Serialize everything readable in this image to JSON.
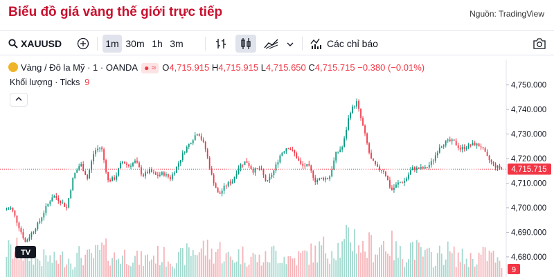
{
  "header": {
    "title": "Biểu đồ giá vàng thế giới trực tiếp",
    "source": "Nguồn: TradingView"
  },
  "toolbar": {
    "symbol": "XAUUSD",
    "intervals": [
      "1m",
      "30m",
      "1h",
      "3m"
    ],
    "active_interval": "1m",
    "indicators_label": "Các chỉ báo",
    "icons": [
      "search-icon",
      "add-symbol-icon",
      "bars-icon",
      "candles-icon",
      "area-icon",
      "chevron-down-icon",
      "indicators-icon",
      "camera-icon"
    ]
  },
  "legend": {
    "name": "Vàng / Đô la Mỹ · 1 · OANDA",
    "o_label": "O",
    "o": "4,715.915",
    "h_label": "H",
    "h": "4,715.915",
    "l_label": "L",
    "l": "4,715.650",
    "c_label": "C",
    "c": "4,715.715",
    "change": "−0.380 (−0.01%)",
    "volume_label": "Khối lượng · Ticks",
    "volume_value": "9"
  },
  "colors": {
    "up": "#089981",
    "down": "#f23645",
    "title": "#c8102e",
    "last_price": "#f23645",
    "volume_up": "#a3d9cf",
    "volume_down": "#f7b2b7"
  },
  "chart_data": {
    "type": "line",
    "title": "",
    "y_ticks": [
      4680,
      4690,
      4700,
      4710,
      4720,
      4730,
      4740,
      4750
    ],
    "y_tick_labels": [
      "4,680.000",
      "4,690.000",
      "4,700.000",
      "4,710.000",
      "4,720.000",
      "4,730.000",
      "4,740.000",
      "4,750.000"
    ],
    "ylim": [
      4678,
      4753
    ],
    "grid": false,
    "last_price": 4715.715,
    "last_price_label": "4,715.715",
    "last_volume": 9,
    "x": [
      0,
      10,
      20,
      30,
      40,
      50,
      60,
      70,
      80,
      90,
      100,
      110,
      120,
      130,
      140,
      150,
      160,
      170,
      180,
      190,
      200,
      210,
      220,
      230,
      240,
      250,
      260,
      270,
      280,
      290,
      300,
      310,
      320,
      330,
      340,
      350,
      360,
      370,
      380,
      390,
      400,
      410,
      420,
      430,
      440,
      450,
      460,
      470,
      480,
      490,
      500,
      510,
      520,
      530,
      540,
      550,
      560,
      570,
      580,
      590,
      600,
      610,
      620,
      630,
      640,
      650,
      660,
      670,
      680,
      690,
      700,
      710,
      720
    ],
    "series": [
      {
        "values": [
          4699,
          4700,
          4693,
          4686,
          4690,
          4694,
          4700,
          4705,
          4703,
          4700,
          4713,
          4718,
          4712,
          4723,
          4725,
          4711,
          4712,
          4719,
          4717,
          4719,
          4713,
          4715,
          4713,
          4714,
          4712,
          4717,
          4723,
          4727,
          4731,
          4725,
          4713,
          4705,
          4709,
          4711,
          4717,
          4719,
          4715,
          4716,
          4710,
          4715,
          4722,
          4725,
          4722,
          4717,
          4717,
          4711,
          4712,
          4712,
          4722,
          4725,
          4739,
          4743,
          4732,
          4720,
          4716,
          4715,
          4707,
          4710,
          4711,
          4716,
          4716,
          4716,
          4719,
          4725,
          4727,
          4727,
          4724,
          4725,
          4726,
          4725,
          4720,
          4717,
          4715.7
        ]
      }
    ],
    "volume": [
      30,
      26,
      28,
      22,
      24,
      18,
      20,
      17,
      19,
      21,
      16,
      24,
      20,
      22,
      28,
      26,
      20,
      22,
      24,
      19,
      18,
      20,
      23,
      21,
      20,
      18,
      22,
      27,
      28,
      31,
      24,
      30,
      21,
      19,
      24,
      22,
      21,
      18,
      19,
      26,
      23,
      20,
      19,
      22,
      24,
      25,
      30,
      29,
      32,
      29,
      44,
      40,
      28,
      33,
      29,
      37,
      33,
      24,
      22,
      34,
      25,
      22,
      20,
      23,
      27,
      22,
      21,
      18,
      20,
      22,
      23,
      21,
      9
    ]
  }
}
